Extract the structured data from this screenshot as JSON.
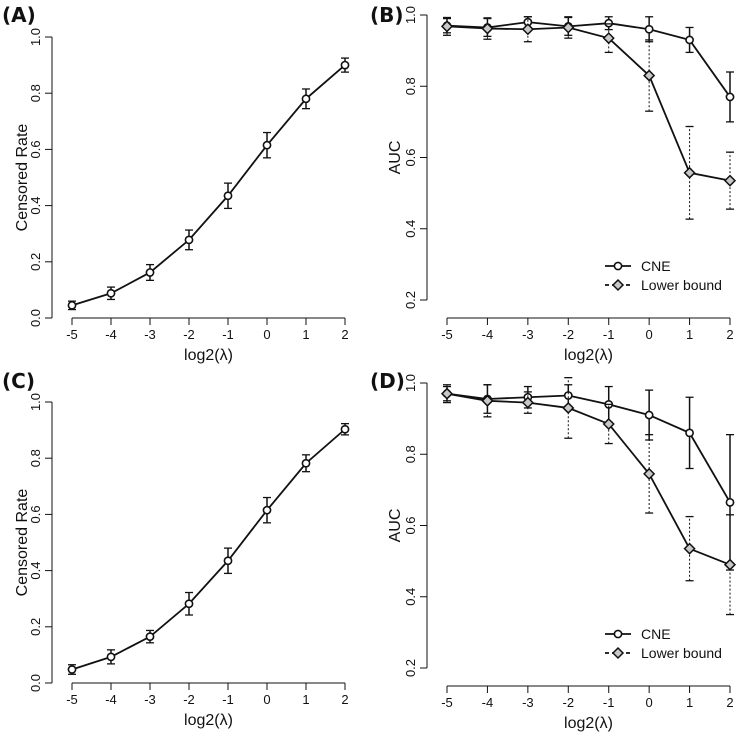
{
  "chart_data": [
    {
      "panel": "(A)",
      "type": "line",
      "xlabel": "log2(λ)",
      "ylabel": "Censored Rate",
      "x": [
        -5,
        -4,
        -3,
        -2,
        -1,
        0,
        1,
        2
      ],
      "xticks": [
        "-5",
        "-4",
        "-3",
        "-2",
        "-1",
        "0",
        "1",
        "2"
      ],
      "ylim": [
        0.0,
        1.0
      ],
      "yticks": [
        "0.0",
        "0.2",
        "0.4",
        "0.6",
        "0.8",
        "1.0"
      ],
      "series": [
        {
          "name": "Censored Rate",
          "marker": "circle",
          "line": "solid",
          "err_line": "solid",
          "values": [
            0.045,
            0.088,
            0.162,
            0.278,
            0.435,
            0.615,
            0.78,
            0.9
          ],
          "err": [
            0.015,
            0.022,
            0.028,
            0.035,
            0.045,
            0.045,
            0.035,
            0.025
          ]
        }
      ],
      "legend": []
    },
    {
      "panel": "(B)",
      "type": "line",
      "xlabel": "log2(λ)",
      "ylabel": "AUC",
      "x": [
        -5,
        -4,
        -3,
        -2,
        -1,
        0,
        1,
        2
      ],
      "xticks": [
        "-5",
        "-4",
        "-3",
        "-2",
        "-1",
        "0",
        "1",
        "2"
      ],
      "ylim": [
        0.2,
        1.0
      ],
      "yticks": [
        "0.2",
        "0.4",
        "0.6",
        "0.8",
        "1.0"
      ],
      "series": [
        {
          "name": "CNE",
          "marker": "circle",
          "line": "solid",
          "err_line": "solid",
          "values": [
            0.97,
            0.965,
            0.98,
            0.968,
            0.977,
            0.96,
            0.93,
            0.77
          ],
          "err": [
            0.02,
            0.025,
            0.015,
            0.025,
            0.018,
            0.035,
            0.035,
            0.07
          ]
        },
        {
          "name": "Lower bound",
          "marker": "diamond",
          "line": "solid",
          "err_line": "dotted",
          "values": [
            0.968,
            0.962,
            0.96,
            0.965,
            0.935,
            0.83,
            0.557,
            0.535
          ],
          "err": [
            0.025,
            0.03,
            0.035,
            0.03,
            0.04,
            0.1,
            0.13,
            0.08
          ]
        }
      ],
      "legend": [
        {
          "label": "CNE",
          "marker": "circle",
          "line": "solid"
        },
        {
          "label": "Lower bound",
          "marker": "diamond",
          "line": "dashed"
        }
      ],
      "legend_position": "bottom-right"
    },
    {
      "panel": "(C)",
      "type": "line",
      "xlabel": "log2(λ)",
      "ylabel": "Censored Rate",
      "x": [
        -5,
        -4,
        -3,
        -2,
        -1,
        0,
        1,
        2
      ],
      "xticks": [
        "-5",
        "-4",
        "-3",
        "-2",
        "-1",
        "0",
        "1",
        "2"
      ],
      "ylim": [
        0.0,
        1.0
      ],
      "yticks": [
        "0.0",
        "0.2",
        "0.4",
        "0.6",
        "0.8",
        "1.0"
      ],
      "series": [
        {
          "name": "Censored Rate",
          "marker": "circle",
          "line": "solid",
          "err_line": "solid",
          "values": [
            0.048,
            0.093,
            0.165,
            0.282,
            0.435,
            0.615,
            0.782,
            0.903
          ],
          "err": [
            0.017,
            0.025,
            0.022,
            0.04,
            0.045,
            0.045,
            0.03,
            0.02
          ]
        }
      ],
      "legend": []
    },
    {
      "panel": "(D)",
      "type": "line",
      "xlabel": "log2(λ)",
      "ylabel": "AUC",
      "x": [
        -5,
        -4,
        -3,
        -2,
        -1,
        0,
        1,
        2
      ],
      "xticks": [
        "-5",
        "-4",
        "-3",
        "-2",
        "-1",
        "0",
        "1",
        "2"
      ],
      "ylim": [
        0.2,
        1.0
      ],
      "yticks": [
        "0.2",
        "0.4",
        "0.6",
        "0.8",
        "1.0"
      ],
      "series": [
        {
          "name": "CNE",
          "marker": "circle",
          "line": "solid",
          "err_line": "solid",
          "values": [
            0.97,
            0.955,
            0.96,
            0.965,
            0.94,
            0.91,
            0.86,
            0.665
          ],
          "err": [
            0.02,
            0.04,
            0.03,
            0.03,
            0.05,
            0.07,
            0.1,
            0.19
          ]
        },
        {
          "name": "Lower bound",
          "marker": "diamond",
          "line": "solid",
          "err_line": "dotted",
          "values": [
            0.97,
            0.95,
            0.945,
            0.93,
            0.885,
            0.745,
            0.535,
            0.49
          ],
          "err": [
            0.025,
            0.045,
            0.03,
            0.085,
            0.055,
            0.11,
            0.09,
            0.14
          ]
        }
      ],
      "legend": [
        {
          "label": "CNE",
          "marker": "circle",
          "line": "solid"
        },
        {
          "label": "Lower bound",
          "marker": "diamond",
          "line": "dashed"
        }
      ],
      "legend_position": "bottom-right"
    }
  ]
}
